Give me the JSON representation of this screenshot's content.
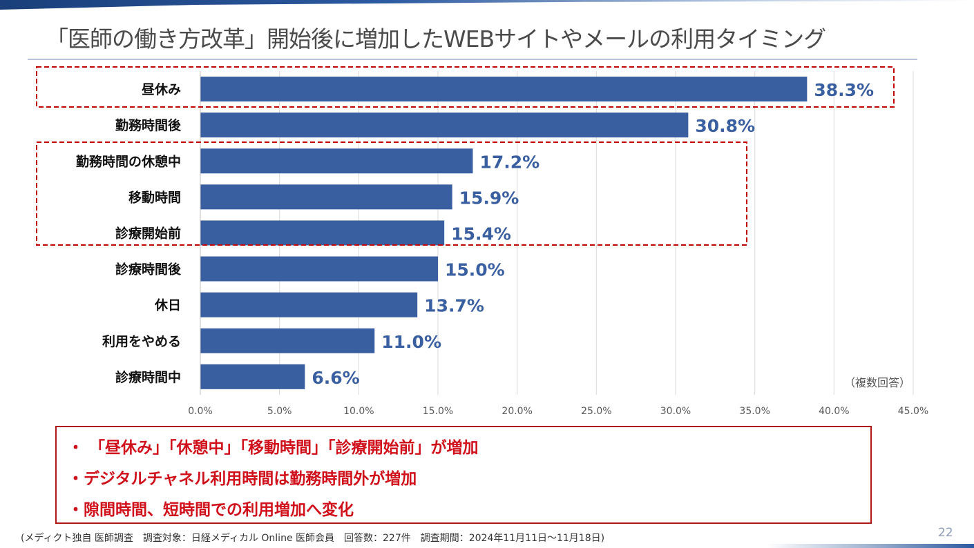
{
  "title": "「医師の働き方改革」開始後に増加したWEBサイトやメールの利用タイミング",
  "chart_data": {
    "type": "bar",
    "orientation": "horizontal",
    "categories": [
      "昼休み",
      "勤務時間後",
      "勤務時間の休憩中",
      "移動時間",
      "診療開始前",
      "診療時間後",
      "休日",
      "利用をやめる",
      "診療時間中"
    ],
    "values": [
      38.3,
      30.8,
      17.2,
      15.9,
      15.4,
      15.0,
      13.7,
      11.0,
      6.6
    ],
    "data_labels": [
      "38.3%",
      "30.8%",
      "17.2%",
      "15.9%",
      "15.4%",
      "15.0%",
      "13.7%",
      "11.0%",
      "6.6%"
    ],
    "xlim": [
      0,
      45
    ],
    "x_ticks": [
      "0.0%",
      "5.0%",
      "10.0%",
      "15.0%",
      "20.0%",
      "25.0%",
      "30.0%",
      "35.0%",
      "40.0%",
      "45.0%"
    ],
    "grid": true,
    "bar_color": "#3a5fa0",
    "highlight_color": "#c00000",
    "highlighted_groups": [
      [
        "昼休み"
      ],
      [
        "勤務時間の休憩中",
        "移動時間",
        "診療開始前"
      ]
    ],
    "note": "（複数回答）"
  },
  "summary": [
    "・ 「昼休み」「休憩中」「移動時間」「診療開始前」が増加",
    "・デジタルチャネル利用時間は勤務時間外が増加",
    "・隙間時間、短時間での利用増加へ変化"
  ],
  "source": "(メディクト独自 医師調査　調査対象：日経メディカル Online 医師会員　回答数：227件　調査期間：2024年11月11日～11月18日)",
  "page_number": "22"
}
